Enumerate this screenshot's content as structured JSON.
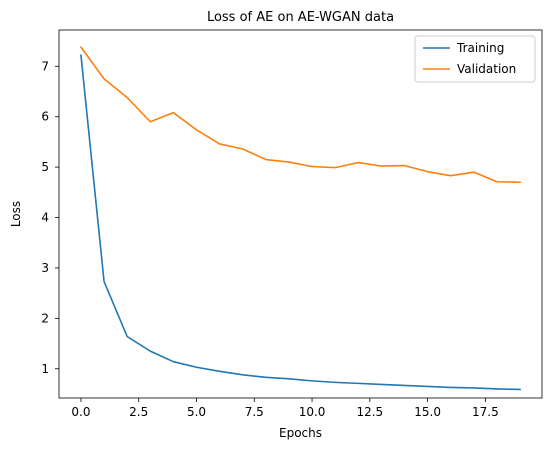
{
  "chart_data": {
    "type": "line",
    "title": "Loss of AE on AE-WGAN data",
    "xlabel": "Epochs",
    "ylabel": "Loss",
    "xlim": [
      -0.95,
      19.95
    ],
    "ylim": [
      0.42,
      7.72
    ],
    "xticks": [
      0.0,
      2.5,
      5.0,
      7.5,
      10.0,
      12.5,
      15.0,
      17.5
    ],
    "xtick_labels": [
      "0.0",
      "2.5",
      "5.0",
      "7.5",
      "10.0",
      "12.5",
      "15.0",
      "17.5"
    ],
    "yticks": [
      1,
      2,
      3,
      4,
      5,
      6,
      7
    ],
    "ytick_labels": [
      "1",
      "2",
      "3",
      "4",
      "5",
      "6",
      "7"
    ],
    "grid": false,
    "legend_position": "top-right",
    "x": [
      0,
      1,
      2,
      3,
      4,
      5,
      6,
      7,
      8,
      9,
      10,
      11,
      12,
      13,
      14,
      15,
      16,
      17,
      18,
      19
    ],
    "series": [
      {
        "name": "Training",
        "color": "#1f77b4",
        "values": [
          7.22,
          2.73,
          1.64,
          1.35,
          1.14,
          1.03,
          0.95,
          0.88,
          0.83,
          0.8,
          0.76,
          0.73,
          0.71,
          0.69,
          0.67,
          0.65,
          0.63,
          0.62,
          0.6,
          0.59
        ]
      },
      {
        "name": "Validation",
        "color": "#ff7f0e",
        "values": [
          7.38,
          6.75,
          6.38,
          5.9,
          6.08,
          5.74,
          5.46,
          5.36,
          5.15,
          5.1,
          5.01,
          4.99,
          5.09,
          5.02,
          5.03,
          4.91,
          4.83,
          4.9,
          4.71,
          4.7
        ]
      }
    ]
  }
}
